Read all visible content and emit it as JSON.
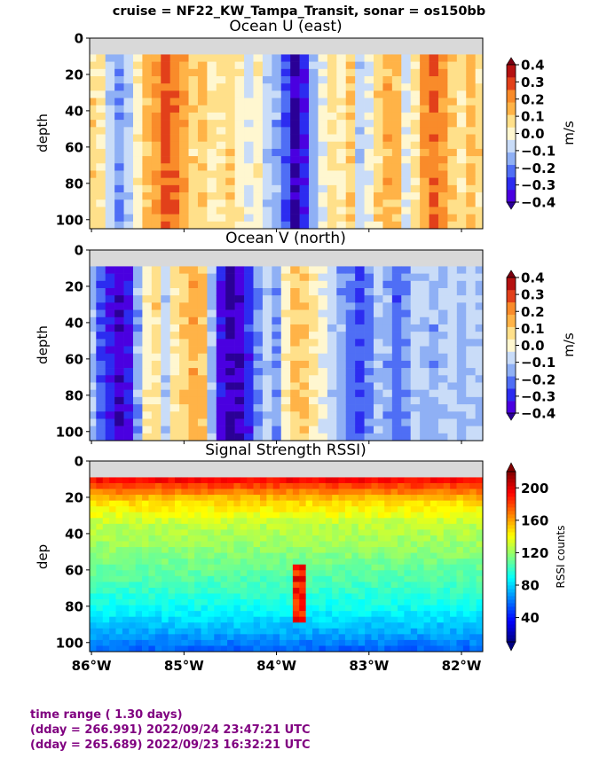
{
  "figure": {
    "suptitle": "cruise = NF22_KW_Tampa_Transit,  sonar = os150bb"
  },
  "footer": {
    "line1": "time range ( 1.30 days)",
    "line2": "(dday = 266.991) 2022/09/24 23:47:21 UTC",
    "line3": "(dday = 265.689) 2022/09/23 16:32:21 UTC"
  },
  "colors": {
    "no_data": "#d9d9d9",
    "diverging_levels": [
      "#4a00e0",
      "#2c2cf0",
      "#4f6ef5",
      "#8fb0f5",
      "#c9dcf8",
      "#fff7d0",
      "#ffe08a",
      "#ffb347",
      "#f98b2a",
      "#e2401a",
      "#b51111"
    ],
    "diverging_under": "#2a0096",
    "diverging_over": "#7a0010"
  },
  "chart_data": [
    {
      "type": "heatmap",
      "title": "Ocean U (east)",
      "ylabel": "depth",
      "colorbar_label": "m/s",
      "ylim": [
        105,
        0
      ],
      "xlim": [
        -86.02,
        -81.77
      ],
      "y_ticks": [
        0,
        20,
        40,
        60,
        80,
        100
      ],
      "y_tick_labels": [
        "0",
        "20",
        "40",
        "60",
        "80",
        "100"
      ],
      "x_ticks": [
        -86,
        -85,
        -84,
        -83,
        -82
      ],
      "x_tick_labels": [],
      "colorbar_ticks": [
        0.4,
        0.3,
        0.2,
        0.1,
        0.0,
        -0.1,
        -0.2,
        -0.3,
        -0.4
      ],
      "colorbar_tick_labels": [
        "0.4",
        "0.3",
        "0.2",
        "0.1",
        "0.0",
        "−0.1",
        "−0.2",
        "−0.3",
        "−0.4"
      ],
      "vmin": -0.4,
      "vmax": 0.4,
      "top_gap_depth": 9,
      "x": [
        -86.0,
        -85.9,
        -85.8,
        -85.7,
        -85.6,
        -85.5,
        -85.4,
        -85.3,
        -85.2,
        -85.1,
        -85.0,
        -84.9,
        -84.8,
        -84.7,
        -84.6,
        -84.5,
        -84.4,
        -84.3,
        -84.2,
        -84.1,
        -84.0,
        -83.9,
        -83.8,
        -83.7,
        -83.6,
        -83.5,
        -83.4,
        -83.3,
        -83.2,
        -83.1,
        -83.0,
        -82.9,
        -82.8,
        -82.7,
        -82.6,
        -82.5,
        -82.4,
        -82.3,
        -82.2,
        -82.1,
        -82.0,
        -81.9,
        -81.8
      ],
      "values": [
        0.12,
        0.1,
        -0.05,
        -0.15,
        -0.05,
        0.05,
        0.18,
        0.25,
        0.35,
        0.3,
        0.22,
        0.12,
        0.15,
        0.08,
        0.1,
        0.12,
        0.05,
        0.0,
        0.05,
        -0.05,
        -0.12,
        -0.25,
        -0.42,
        -0.3,
        -0.12,
        0.02,
        0.1,
        0.05,
        0.15,
        -0.05,
        0.0,
        0.12,
        0.2,
        0.18,
        -0.02,
        0.1,
        0.25,
        0.3,
        0.25,
        0.15,
        0.1,
        0.18,
        0.12
      ]
    },
    {
      "type": "heatmap",
      "title": "Ocean V (north)",
      "ylabel": "depth",
      "colorbar_label": "m/s",
      "ylim": [
        105,
        0
      ],
      "xlim": [
        -86.02,
        -81.77
      ],
      "y_ticks": [
        0,
        20,
        40,
        60,
        80,
        100
      ],
      "y_tick_labels": [
        "0",
        "20",
        "40",
        "60",
        "80",
        "100"
      ],
      "x_ticks": [
        -86,
        -85,
        -84,
        -83,
        -82
      ],
      "x_tick_labels": [],
      "colorbar_ticks": [
        0.4,
        0.3,
        0.2,
        0.1,
        0.0,
        -0.1,
        -0.2,
        -0.3,
        -0.4
      ],
      "colorbar_tick_labels": [
        "0.4",
        "0.3",
        "0.2",
        "0.1",
        "0.0",
        "−0.1",
        "−0.2",
        "−0.3",
        "−0.4"
      ],
      "vmin": -0.4,
      "vmax": 0.4,
      "top_gap_depth": 9,
      "x": [
        -86.0,
        -85.9,
        -85.8,
        -85.7,
        -85.6,
        -85.5,
        -85.4,
        -85.3,
        -85.2,
        -85.1,
        -85.0,
        -84.9,
        -84.8,
        -84.7,
        -84.6,
        -84.5,
        -84.4,
        -84.3,
        -84.2,
        -84.1,
        -84.0,
        -83.9,
        -83.8,
        -83.7,
        -83.6,
        -83.5,
        -83.4,
        -83.3,
        -83.2,
        -83.1,
        -83.0,
        -82.9,
        -82.8,
        -82.7,
        -82.6,
        -82.5,
        -82.4,
        -82.3,
        -82.2,
        -82.1,
        -82.0,
        -81.9,
        -81.8
      ],
      "values": [
        -0.1,
        -0.22,
        -0.3,
        -0.38,
        -0.32,
        -0.12,
        0.05,
        0.12,
        -0.05,
        0.1,
        0.15,
        0.2,
        0.18,
        -0.1,
        -0.35,
        -0.42,
        -0.38,
        -0.28,
        -0.15,
        -0.05,
        -0.15,
        0.05,
        0.18,
        0.15,
        0.08,
        0.02,
        -0.05,
        -0.12,
        -0.2,
        -0.25,
        -0.18,
        -0.08,
        -0.12,
        -0.2,
        -0.15,
        -0.05,
        -0.1,
        -0.12,
        -0.08,
        -0.05,
        -0.1,
        -0.05,
        -0.08
      ]
    },
    {
      "type": "heatmap",
      "title": "Signal Strength RSSI)",
      "ylabel": "dep",
      "colorbar_label": "RSSI counts",
      "ylim": [
        105,
        0
      ],
      "xlim": [
        -86.02,
        -81.77
      ],
      "y_ticks": [
        0,
        20,
        40,
        60,
        80,
        100
      ],
      "y_tick_labels": [
        "0",
        "20",
        "40",
        "60",
        "80",
        "100"
      ],
      "x_ticks": [
        -86,
        -85,
        -84,
        -83,
        -82
      ],
      "x_tick_labels": [
        "86°W",
        "85°W",
        "84°W",
        "83°W",
        "82°W"
      ],
      "colorbar_ticks": [
        200,
        160,
        120,
        80,
        40
      ],
      "colorbar_tick_labels": [
        "200",
        "160",
        "120",
        "80",
        "40"
      ],
      "vmin": 10,
      "vmax": 220,
      "top_gap_depth": 9,
      "depth_profile": [
        {
          "depth": 10,
          "value": 195
        },
        {
          "depth": 15,
          "value": 175
        },
        {
          "depth": 22,
          "value": 150
        },
        {
          "depth": 35,
          "value": 128
        },
        {
          "depth": 50,
          "value": 118
        },
        {
          "depth": 65,
          "value": 105
        },
        {
          "depth": 80,
          "value": 92
        },
        {
          "depth": 92,
          "value": 75
        },
        {
          "depth": 105,
          "value": 55
        }
      ],
      "anomaly": {
        "x_start": -83.82,
        "x_end": -83.68,
        "depth_start": 58,
        "depth_end": 90,
        "value": 205
      }
    }
  ]
}
